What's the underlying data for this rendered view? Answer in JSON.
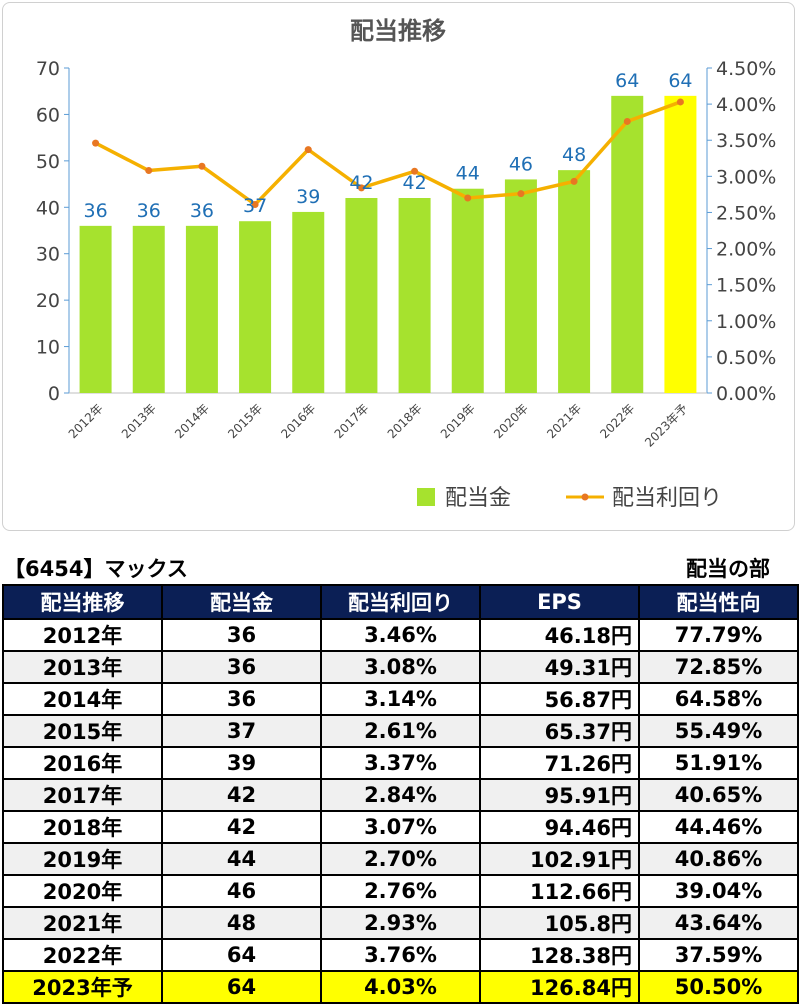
{
  "chart_data": {
    "type": "bar+line",
    "title": "配当推移",
    "categories": [
      "2012年",
      "2013年",
      "2014年",
      "2015年",
      "2016年",
      "2017年",
      "2018年",
      "2019年",
      "2020年",
      "2021年",
      "2022年",
      "2023年予"
    ],
    "series": [
      {
        "name": "配当金",
        "type": "bar",
        "axis": "left",
        "values": [
          36,
          36,
          36,
          37,
          39,
          42,
          42,
          44,
          46,
          48,
          64,
          64
        ],
        "color": "#a6e22e",
        "highlight_color": "#ffff00",
        "highlight_index": 11
      },
      {
        "name": "配当利回り",
        "type": "line",
        "axis": "right",
        "values": [
          3.46,
          3.08,
          3.14,
          2.61,
          3.37,
          2.84,
          3.07,
          2.7,
          2.76,
          2.93,
          3.76,
          4.03
        ],
        "color": "#f5b000",
        "marker_color": "#e87722"
      }
    ],
    "left_axis": {
      "min": 0,
      "max": 70,
      "ticks": [
        0,
        10,
        20,
        30,
        40,
        50,
        60,
        70
      ]
    },
    "right_axis": {
      "min": 0,
      "max": 4.5,
      "ticks": [
        0,
        0.5,
        1.0,
        1.5,
        2.0,
        2.5,
        3.0,
        3.5,
        4.0,
        4.5
      ],
      "tick_labels": [
        "0.00%",
        "0.50%",
        "1.00%",
        "1.50%",
        "2.00%",
        "2.50%",
        "3.00%",
        "3.50%",
        "4.00%",
        "4.50%"
      ]
    },
    "legend_position": "bottom-right",
    "axis_color": "#5b9bd5",
    "data_label_color": "#1f6fb5"
  },
  "stock_title": "【6454】マックス",
  "section_label": "配当の部",
  "table": {
    "headers": [
      "配当推移",
      "配当金",
      "配当利回り",
      "EPS",
      "配当性向"
    ],
    "rows": [
      [
        "2012年",
        "36",
        "3.46%",
        "46.18円",
        "77.79%"
      ],
      [
        "2013年",
        "36",
        "3.08%",
        "49.31円",
        "72.85%"
      ],
      [
        "2014年",
        "36",
        "3.14%",
        "56.87円",
        "64.58%"
      ],
      [
        "2015年",
        "37",
        "2.61%",
        "65.37円",
        "55.49%"
      ],
      [
        "2016年",
        "39",
        "3.37%",
        "71.26円",
        "51.91%"
      ],
      [
        "2017年",
        "42",
        "2.84%",
        "95.91円",
        "40.65%"
      ],
      [
        "2018年",
        "42",
        "3.07%",
        "94.46円",
        "44.46%"
      ],
      [
        "2019年",
        "44",
        "2.70%",
        "102.91円",
        "40.86%"
      ],
      [
        "2020年",
        "46",
        "2.76%",
        "112.66円",
        "39.04%"
      ],
      [
        "2021年",
        "48",
        "2.93%",
        "105.8円",
        "43.64%"
      ],
      [
        "2022年",
        "64",
        "3.76%",
        "128.38円",
        "37.59%"
      ],
      [
        "2023年予",
        "64",
        "4.03%",
        "126.84円",
        "50.50%"
      ]
    ],
    "header_bg": "#0b1f55",
    "alt_row_bg": "#f0f0f0",
    "forecast_row_bg": "#ffff00"
  }
}
